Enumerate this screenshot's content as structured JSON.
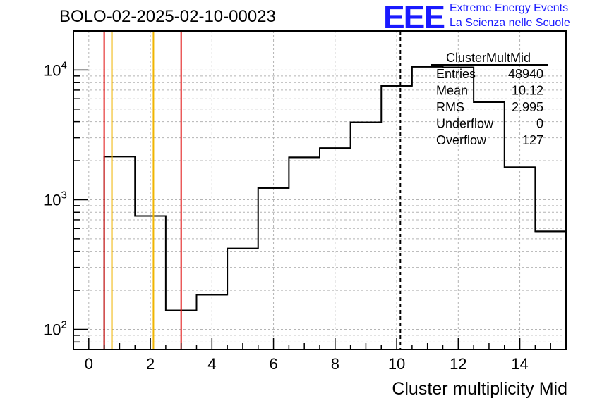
{
  "header": {
    "run_title": "BOLO-02-2025-02-10-00023",
    "logo_text": "EEE",
    "logo_line1": "Extreme Energy Events",
    "logo_line2": "La Scienza nelle Scuole",
    "logo_color": "#1a1aff"
  },
  "stats": {
    "name": "ClusterMultMid",
    "rows": [
      {
        "label": "Entries",
        "value": "48940"
      },
      {
        "label": "Mean",
        "value": "10.12"
      },
      {
        "label": "RMS",
        "value": "2.995"
      },
      {
        "label": "Underflow",
        "value": "0"
      },
      {
        "label": "Overflow",
        "value": "127"
      }
    ]
  },
  "chart_data": {
    "type": "histogram",
    "xlabel": "Cluster multiplicity Mid",
    "ylabel": "",
    "xlim": [
      -0.5,
      15.5
    ],
    "ylim": [
      70,
      20000
    ],
    "yscale": "log",
    "grid": true,
    "x_ticks": [
      "0",
      "2",
      "4",
      "6",
      "8",
      "10",
      "12",
      "14"
    ],
    "x_tick_values": [
      0,
      2,
      4,
      6,
      8,
      10,
      12,
      14
    ],
    "y_ticks": [
      {
        "value": 100,
        "base": "10",
        "exp": "2"
      },
      {
        "value": 1000,
        "base": "10",
        "exp": "3"
      },
      {
        "value": 10000,
        "base": "10",
        "exp": "4"
      }
    ],
    "bin_edges": [
      0.5,
      1.5,
      2.5,
      3.5,
      4.5,
      5.5,
      6.5,
      7.5,
      8.5,
      9.5,
      10.5,
      11.5,
      12.5,
      13.5,
      14.5,
      15.5
    ],
    "counts": [
      2150,
      750,
      140,
      185,
      420,
      1230,
      2120,
      2500,
      3950,
      7550,
      10600,
      10500,
      5650,
      1780,
      570
    ],
    "vertical_lines": [
      {
        "x": 0.5,
        "color": "#e01010",
        "style": "solid"
      },
      {
        "x": 0.75,
        "color": "#f0b400",
        "style": "solid"
      },
      {
        "x": 2.1,
        "color": "#f0b400",
        "style": "solid"
      },
      {
        "x": 3.0,
        "color": "#e01010",
        "style": "solid"
      },
      {
        "x": 10.12,
        "color": "#000000",
        "style": "dashed"
      }
    ]
  }
}
